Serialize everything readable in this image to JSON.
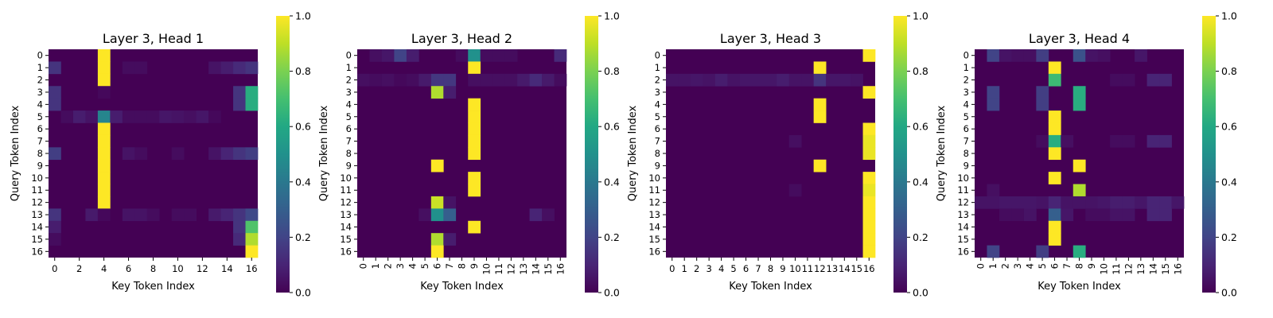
{
  "chart_data": [
    {
      "type": "heatmap",
      "title": "Layer 3, Head 1",
      "xlabel": "Key Token Index",
      "ylabel": "Query Token Index",
      "x_tick_labels": [
        "0",
        "2",
        "4",
        "6",
        "8",
        "10",
        "12",
        "14",
        "16"
      ],
      "y_tick_labels": [
        "0",
        "1",
        "2",
        "3",
        "4",
        "5",
        "6",
        "7",
        "8",
        "9",
        "10",
        "11",
        "12",
        "13",
        "14",
        "15",
        "16"
      ],
      "x_tick_rotation": "horizontal",
      "colorbar_ticks": [
        "0.0",
        "0.2",
        "0.4",
        "0.6",
        "0.8",
        "1.0"
      ],
      "vmin": 0,
      "vmax": 1,
      "colormap": "viridis",
      "rows": 17,
      "cols": 17,
      "cells": [
        [
          0,
          4,
          1.0
        ],
        [
          1,
          0,
          0.15
        ],
        [
          1,
          4,
          1.0
        ],
        [
          1,
          6,
          0.03
        ],
        [
          1,
          7,
          0.03
        ],
        [
          1,
          13,
          0.05
        ],
        [
          1,
          14,
          0.08
        ],
        [
          1,
          15,
          0.12
        ],
        [
          1,
          16,
          0.15
        ],
        [
          2,
          4,
          1.0
        ],
        [
          3,
          0,
          0.15
        ],
        [
          3,
          4,
          0.02
        ],
        [
          3,
          15,
          0.15
        ],
        [
          3,
          16,
          0.62
        ],
        [
          4,
          0,
          0.15
        ],
        [
          4,
          15,
          0.15
        ],
        [
          4,
          16,
          0.62
        ],
        [
          5,
          1,
          0.03
        ],
        [
          5,
          2,
          0.08
        ],
        [
          5,
          3,
          0.05
        ],
        [
          5,
          4,
          0.45
        ],
        [
          5,
          5,
          0.08
        ],
        [
          5,
          6,
          0.03
        ],
        [
          5,
          7,
          0.03
        ],
        [
          5,
          8,
          0.03
        ],
        [
          5,
          9,
          0.06
        ],
        [
          5,
          10,
          0.05
        ],
        [
          5,
          11,
          0.04
        ],
        [
          5,
          12,
          0.06
        ],
        [
          5,
          13,
          0.02
        ],
        [
          6,
          4,
          1.0
        ],
        [
          7,
          4,
          1.0
        ],
        [
          8,
          0,
          0.18
        ],
        [
          8,
          4,
          1.0
        ],
        [
          8,
          6,
          0.05
        ],
        [
          8,
          7,
          0.03
        ],
        [
          8,
          10,
          0.03
        ],
        [
          8,
          13,
          0.05
        ],
        [
          8,
          14,
          0.1
        ],
        [
          8,
          15,
          0.15
        ],
        [
          8,
          16,
          0.18
        ],
        [
          9,
          4,
          1.0
        ],
        [
          10,
          4,
          1.0
        ],
        [
          11,
          4,
          1.0
        ],
        [
          12,
          4,
          1.0
        ],
        [
          13,
          0,
          0.15
        ],
        [
          13,
          3,
          0.07
        ],
        [
          13,
          4,
          0.02
        ],
        [
          13,
          6,
          0.05
        ],
        [
          13,
          7,
          0.05
        ],
        [
          13,
          8,
          0.03
        ],
        [
          13,
          10,
          0.03
        ],
        [
          13,
          11,
          0.03
        ],
        [
          13,
          13,
          0.07
        ],
        [
          13,
          14,
          0.1
        ],
        [
          13,
          15,
          0.15
        ],
        [
          13,
          16,
          0.22
        ],
        [
          14,
          0,
          0.08
        ],
        [
          14,
          15,
          0.15
        ],
        [
          14,
          16,
          0.72
        ],
        [
          15,
          0,
          0.03
        ],
        [
          15,
          15,
          0.12
        ],
        [
          15,
          16,
          0.88
        ],
        [
          16,
          16,
          1.0
        ]
      ]
    },
    {
      "type": "heatmap",
      "title": "Layer 3, Head 2",
      "xlabel": "Key Token Index",
      "ylabel": "Query Token Index",
      "x_tick_labels": [
        "0",
        "1",
        "2",
        "3",
        "4",
        "5",
        "6",
        "7",
        "8",
        "9",
        "10",
        "11",
        "12",
        "13",
        "14",
        "15",
        "16"
      ],
      "y_tick_labels": [
        "0",
        "1",
        "2",
        "3",
        "4",
        "5",
        "6",
        "7",
        "8",
        "9",
        "10",
        "11",
        "12",
        "13",
        "14",
        "15",
        "16"
      ],
      "x_tick_rotation": "vertical",
      "colorbar_ticks": [
        "0.0",
        "0.2",
        "0.4",
        "0.6",
        "0.8",
        "1.0"
      ],
      "vmin": 0,
      "vmax": 1,
      "colormap": "viridis",
      "rows": 17,
      "cols": 17,
      "cells": [
        [
          0,
          1,
          0.04
        ],
        [
          0,
          2,
          0.06
        ],
        [
          0,
          3,
          0.2
        ],
        [
          0,
          4,
          0.08
        ],
        [
          0,
          8,
          0.03
        ],
        [
          0,
          9,
          0.5
        ],
        [
          0,
          10,
          0.03
        ],
        [
          0,
          11,
          0.03
        ],
        [
          0,
          12,
          0.03
        ],
        [
          0,
          16,
          0.12
        ],
        [
          1,
          9,
          1.0
        ],
        [
          2,
          0,
          0.04
        ],
        [
          2,
          1,
          0.03
        ],
        [
          2,
          2,
          0.04
        ],
        [
          2,
          3,
          0.02
        ],
        [
          2,
          4,
          0.03
        ],
        [
          2,
          5,
          0.07
        ],
        [
          2,
          6,
          0.16
        ],
        [
          2,
          7,
          0.16
        ],
        [
          2,
          9,
          0.04
        ],
        [
          2,
          10,
          0.04
        ],
        [
          2,
          11,
          0.04
        ],
        [
          2,
          12,
          0.04
        ],
        [
          2,
          13,
          0.07
        ],
        [
          2,
          14,
          0.12
        ],
        [
          2,
          15,
          0.07
        ],
        [
          2,
          16,
          0.03
        ],
        [
          3,
          6,
          0.88
        ],
        [
          3,
          7,
          0.08
        ],
        [
          4,
          9,
          1.0
        ],
        [
          5,
          9,
          1.0
        ],
        [
          6,
          9,
          1.0
        ],
        [
          7,
          9,
          1.0
        ],
        [
          8,
          9,
          1.0
        ],
        [
          9,
          6,
          1.0
        ],
        [
          10,
          9,
          1.0
        ],
        [
          11,
          9,
          1.0
        ],
        [
          12,
          6,
          0.92
        ],
        [
          12,
          7,
          0.05
        ],
        [
          13,
          5,
          0.04
        ],
        [
          13,
          6,
          0.5
        ],
        [
          13,
          7,
          0.3
        ],
        [
          13,
          14,
          0.1
        ],
        [
          13,
          15,
          0.04
        ],
        [
          14,
          9,
          1.0
        ],
        [
          15,
          6,
          0.88
        ],
        [
          15,
          7,
          0.08
        ],
        [
          16,
          6,
          1.0
        ]
      ]
    },
    {
      "type": "heatmap",
      "title": "Layer 3, Head 3",
      "xlabel": "Key Token Index",
      "ylabel": "Query Token Index",
      "x_tick_labels": [
        "0",
        "1",
        "2",
        "3",
        "4",
        "5",
        "6",
        "7",
        "8",
        "9",
        "10",
        "11",
        "12",
        "13",
        "14",
        "15",
        "16"
      ],
      "y_tick_labels": [
        "0",
        "1",
        "2",
        "3",
        "4",
        "5",
        "6",
        "7",
        "8",
        "9",
        "10",
        "11",
        "12",
        "13",
        "14",
        "15",
        "16"
      ],
      "x_tick_rotation": "horizontal",
      "colorbar_ticks": [
        "0.0",
        "0.2",
        "0.4",
        "0.6",
        "0.8",
        "1.0"
      ],
      "vmin": 0,
      "vmax": 1,
      "colormap": "viridis",
      "rows": 17,
      "cols": 17,
      "cells": [
        [
          0,
          16,
          1.0
        ],
        [
          1,
          12,
          1.0
        ],
        [
          2,
          0,
          0.05
        ],
        [
          2,
          1,
          0.05
        ],
        [
          2,
          2,
          0.06
        ],
        [
          2,
          3,
          0.05
        ],
        [
          2,
          4,
          0.08
        ],
        [
          2,
          5,
          0.05
        ],
        [
          2,
          6,
          0.06
        ],
        [
          2,
          7,
          0.06
        ],
        [
          2,
          8,
          0.06
        ],
        [
          2,
          9,
          0.08
        ],
        [
          2,
          10,
          0.05
        ],
        [
          2,
          11,
          0.05
        ],
        [
          2,
          12,
          0.15
        ],
        [
          2,
          13,
          0.06
        ],
        [
          2,
          14,
          0.06
        ],
        [
          2,
          15,
          0.05
        ],
        [
          3,
          16,
          1.0
        ],
        [
          4,
          12,
          1.0
        ],
        [
          5,
          12,
          1.0
        ],
        [
          6,
          16,
          1.0
        ],
        [
          7,
          10,
          0.04
        ],
        [
          7,
          16,
          0.97
        ],
        [
          8,
          16,
          0.97
        ],
        [
          9,
          12,
          1.0
        ],
        [
          10,
          16,
          1.0
        ],
        [
          11,
          10,
          0.03
        ],
        [
          11,
          16,
          0.97
        ],
        [
          12,
          16,
          1.0
        ],
        [
          13,
          16,
          1.0
        ],
        [
          14,
          16,
          1.0
        ],
        [
          15,
          16,
          1.0
        ],
        [
          16,
          16,
          1.0
        ]
      ]
    },
    {
      "type": "heatmap",
      "title": "Layer 3, Head 4",
      "xlabel": "Key Token Index",
      "ylabel": "Query Token Index",
      "x_tick_labels": [
        "0",
        "1",
        "2",
        "3",
        "4",
        "5",
        "6",
        "7",
        "8",
        "9",
        "10",
        "11",
        "12",
        "13",
        "14",
        "15",
        "16"
      ],
      "y_tick_labels": [
        "0",
        "1",
        "2",
        "3",
        "4",
        "5",
        "6",
        "7",
        "8",
        "9",
        "10",
        "11",
        "12",
        "13",
        "14",
        "15",
        "16"
      ],
      "x_tick_rotation": "vertical",
      "colorbar_ticks": [
        "0.0",
        "0.2",
        "0.4",
        "0.6",
        "0.8",
        "1.0"
      ],
      "vmin": 0,
      "vmax": 1,
      "colormap": "viridis",
      "rows": 17,
      "cols": 17,
      "cells": [
        [
          0,
          1,
          0.2
        ],
        [
          0,
          2,
          0.05
        ],
        [
          0,
          3,
          0.04
        ],
        [
          0,
          4,
          0.04
        ],
        [
          0,
          5,
          0.18
        ],
        [
          0,
          8,
          0.25
        ],
        [
          0,
          9,
          0.05
        ],
        [
          0,
          10,
          0.04
        ],
        [
          0,
          13,
          0.06
        ],
        [
          1,
          6,
          1.0
        ],
        [
          2,
          6,
          0.68
        ],
        [
          2,
          11,
          0.03
        ],
        [
          2,
          12,
          0.03
        ],
        [
          2,
          14,
          0.1
        ],
        [
          2,
          15,
          0.1
        ],
        [
          3,
          1,
          0.2
        ],
        [
          3,
          5,
          0.18
        ],
        [
          3,
          8,
          0.62
        ],
        [
          4,
          1,
          0.2
        ],
        [
          4,
          5,
          0.18
        ],
        [
          4,
          8,
          0.62
        ],
        [
          5,
          6,
          1.0
        ],
        [
          6,
          6,
          1.0
        ],
        [
          7,
          5,
          0.03
        ],
        [
          7,
          6,
          0.62
        ],
        [
          7,
          7,
          0.04
        ],
        [
          7,
          11,
          0.03
        ],
        [
          7,
          12,
          0.03
        ],
        [
          7,
          14,
          0.1
        ],
        [
          7,
          15,
          0.1
        ],
        [
          8,
          6,
          1.0
        ],
        [
          9,
          8,
          1.0
        ],
        [
          10,
          6,
          1.0
        ],
        [
          11,
          1,
          0.04
        ],
        [
          11,
          8,
          0.88
        ],
        [
          12,
          0,
          0.05
        ],
        [
          12,
          1,
          0.05
        ],
        [
          12,
          2,
          0.06
        ],
        [
          12,
          3,
          0.06
        ],
        [
          12,
          4,
          0.06
        ],
        [
          12,
          5,
          0.05
        ],
        [
          12,
          6,
          0.1
        ],
        [
          12,
          7,
          0.05
        ],
        [
          12,
          8,
          0.05
        ],
        [
          12,
          9,
          0.05
        ],
        [
          12,
          10,
          0.06
        ],
        [
          12,
          11,
          0.08
        ],
        [
          12,
          12,
          0.08
        ],
        [
          12,
          13,
          0.06
        ],
        [
          12,
          14,
          0.1
        ],
        [
          12,
          15,
          0.1
        ],
        [
          12,
          16,
          0.06
        ],
        [
          13,
          2,
          0.03
        ],
        [
          13,
          3,
          0.03
        ],
        [
          13,
          4,
          0.05
        ],
        [
          13,
          6,
          0.3
        ],
        [
          13,
          7,
          0.06
        ],
        [
          13,
          9,
          0.03
        ],
        [
          13,
          10,
          0.03
        ],
        [
          13,
          11,
          0.05
        ],
        [
          13,
          12,
          0.05
        ],
        [
          13,
          14,
          0.1
        ],
        [
          13,
          15,
          0.1
        ],
        [
          14,
          6,
          1.0
        ],
        [
          15,
          6,
          1.0
        ],
        [
          16,
          1,
          0.2
        ],
        [
          16,
          5,
          0.18
        ],
        [
          16,
          8,
          0.62
        ]
      ]
    }
  ]
}
